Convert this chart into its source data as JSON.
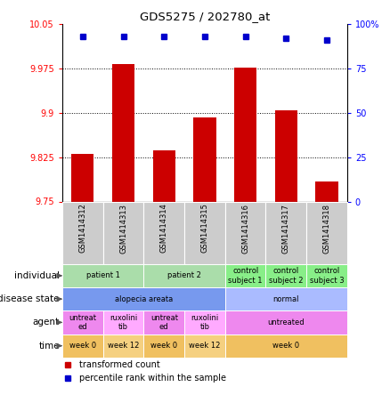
{
  "title": "GDS5275 / 202780_at",
  "samples": [
    "GSM1414312",
    "GSM1414313",
    "GSM1414314",
    "GSM1414315",
    "GSM1414316",
    "GSM1414317",
    "GSM1414318"
  ],
  "transformed_count": [
    9.83,
    9.983,
    9.836,
    9.892,
    9.976,
    9.905,
    9.784
  ],
  "percentile_rank": [
    93,
    93,
    93,
    93,
    93,
    92,
    91
  ],
  "ylim_left": [
    9.75,
    10.05
  ],
  "ylim_right": [
    0,
    100
  ],
  "yticks_left": [
    9.75,
    9.825,
    9.9,
    9.975,
    10.05
  ],
  "ytick_labels_left": [
    "9.75",
    "9.825",
    "9.9",
    "9.975",
    "10.05"
  ],
  "yticks_right": [
    0,
    25,
    50,
    75,
    100
  ],
  "ytick_labels_right": [
    "0",
    "25",
    "50",
    "75",
    "100%"
  ],
  "bar_color": "#cc0000",
  "dot_color": "#0000cc",
  "sample_box_color": "#cccccc",
  "annotation_rows": [
    {
      "label": "individual",
      "cells": [
        {
          "text": "patient 1",
          "colspan": 2,
          "color": "#aaddaa"
        },
        {
          "text": "patient 2",
          "colspan": 2,
          "color": "#aaddaa"
        },
        {
          "text": "control\nsubject 1",
          "colspan": 1,
          "color": "#88ee88"
        },
        {
          "text": "control\nsubject 2",
          "colspan": 1,
          "color": "#88ee88"
        },
        {
          "text": "control\nsubject 3",
          "colspan": 1,
          "color": "#88ee88"
        }
      ]
    },
    {
      "label": "disease state",
      "cells": [
        {
          "text": "alopecia areata",
          "colspan": 4,
          "color": "#7799ee"
        },
        {
          "text": "normal",
          "colspan": 3,
          "color": "#aabbff"
        }
      ]
    },
    {
      "label": "agent",
      "cells": [
        {
          "text": "untreat\ned",
          "colspan": 1,
          "color": "#ee88ee"
        },
        {
          "text": "ruxolini\ntib",
          "colspan": 1,
          "color": "#ffaaff"
        },
        {
          "text": "untreat\ned",
          "colspan": 1,
          "color": "#ee88ee"
        },
        {
          "text": "ruxolini\ntib",
          "colspan": 1,
          "color": "#ffaaff"
        },
        {
          "text": "untreated",
          "colspan": 3,
          "color": "#ee88ee"
        }
      ]
    },
    {
      "label": "time",
      "cells": [
        {
          "text": "week 0",
          "colspan": 1,
          "color": "#f0c060"
        },
        {
          "text": "week 12",
          "colspan": 1,
          "color": "#f5d080"
        },
        {
          "text": "week 0",
          "colspan": 1,
          "color": "#f0c060"
        },
        {
          "text": "week 12",
          "colspan": 1,
          "color": "#f5d080"
        },
        {
          "text": "week 0",
          "colspan": 3,
          "color": "#f0c060"
        }
      ]
    }
  ],
  "legend": [
    {
      "color": "#cc0000",
      "label": "transformed count"
    },
    {
      "color": "#0000cc",
      "label": "percentile rank within the sample"
    }
  ],
  "fig_width": 4.38,
  "fig_height": 4.53,
  "dpi": 100
}
